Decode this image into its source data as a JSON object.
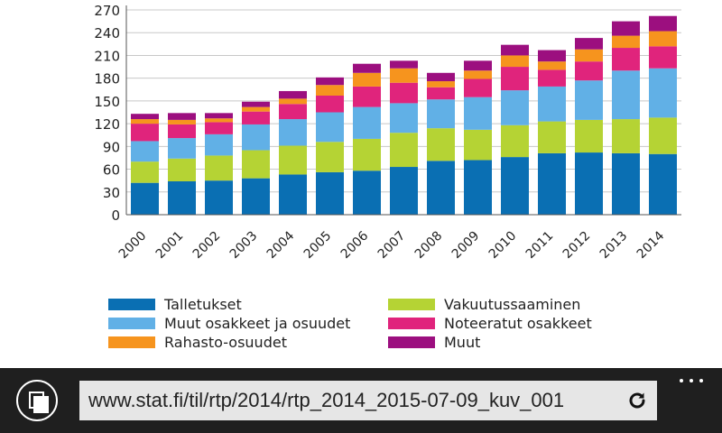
{
  "chart_data": {
    "type": "bar",
    "stacked": true,
    "categories": [
      "2000",
      "2001",
      "2002",
      "2003",
      "2004",
      "2005",
      "2006",
      "2007",
      "2008",
      "2009",
      "2010",
      "2011",
      "2012",
      "2013",
      "2014"
    ],
    "series": [
      {
        "name": "Talletukset",
        "color": "#0a6fb3",
        "values": [
          42,
          44,
          45,
          48,
          53,
          56,
          58,
          63,
          71,
          72,
          76,
          81,
          82,
          81,
          80
        ]
      },
      {
        "name": "Vakuutussaaminen",
        "color": "#b5d334",
        "values": [
          28,
          30,
          33,
          37,
          38,
          40,
          42,
          45,
          43,
          40,
          42,
          42,
          43,
          45,
          48
        ]
      },
      {
        "name": "Muut osakkeet ja osuudet",
        "color": "#61b0e6",
        "values": [
          27,
          27,
          28,
          34,
          35,
          39,
          42,
          39,
          38,
          43,
          46,
          46,
          52,
          64,
          65
        ]
      },
      {
        "name": "Noteeratut osakkeet",
        "color": "#e0247c",
        "values": [
          23,
          18,
          16,
          17,
          20,
          22,
          27,
          27,
          16,
          24,
          31,
          22,
          25,
          30,
          29
        ]
      },
      {
        "name": "Rahasto-osuudet",
        "color": "#f6941e",
        "values": [
          6,
          6,
          5,
          6,
          7,
          14,
          18,
          19,
          8,
          11,
          15,
          11,
          16,
          16,
          20
        ]
      },
      {
        "name": "Muut",
        "color": "#9c0f7f",
        "values": [
          7,
          9,
          7,
          7,
          10,
          10,
          12,
          10,
          11,
          13,
          14,
          15,
          15,
          19,
          20
        ]
      }
    ],
    "ylim": [
      0,
      270
    ],
    "yticks": [
      0,
      30,
      60,
      90,
      120,
      150,
      180,
      210,
      240,
      270
    ],
    "title": "",
    "xlabel": "",
    "ylabel": "",
    "grid": true,
    "legend_position": "bottom"
  },
  "legend": {
    "items": [
      {
        "label": "Talletukset",
        "color": "#0a6fb3"
      },
      {
        "label": "Vakuutussaaminen",
        "color": "#b5d334"
      },
      {
        "label": "Muut osakkeet ja osuudet",
        "color": "#61b0e6"
      },
      {
        "label": "Noteeratut osakkeet",
        "color": "#e0247c"
      },
      {
        "label": "Rahasto-osuudet",
        "color": "#f6941e"
      },
      {
        "label": "Muut",
        "color": "#9c0f7f"
      }
    ]
  },
  "browser": {
    "url": "www.stat.fi/til/rtp/2014/rtp_2014_2015-07-09_kuv_001"
  }
}
